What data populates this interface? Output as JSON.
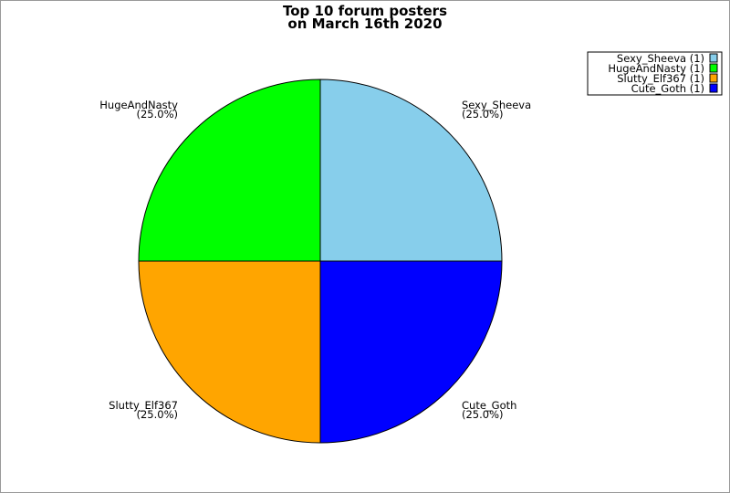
{
  "chart_data": {
    "type": "pie",
    "title": [
      "Top 10 forum posters",
      "on March 16th 2020"
    ],
    "slices": [
      {
        "label": "Sexy_Sheeva",
        "value": 1,
        "percent": "(25.0%)",
        "color": "#87CEEB",
        "legend": "Sexy_Sheeva (1)"
      },
      {
        "label": "HugeAndNasty",
        "value": 1,
        "percent": "(25.0%)",
        "color": "#00FF00",
        "legend": "HugeAndNasty (1)"
      },
      {
        "label": "Slutty_Elf367",
        "value": 1,
        "percent": "(25.0%)",
        "color": "#FFA500",
        "legend": "Slutty_Elf367 (1)"
      },
      {
        "label": "Cute_Goth",
        "value": 1,
        "percent": "(25.0%)",
        "color": "#0000FF",
        "legend": "Cute_Goth (1)"
      }
    ],
    "legend_position": "top-right"
  }
}
